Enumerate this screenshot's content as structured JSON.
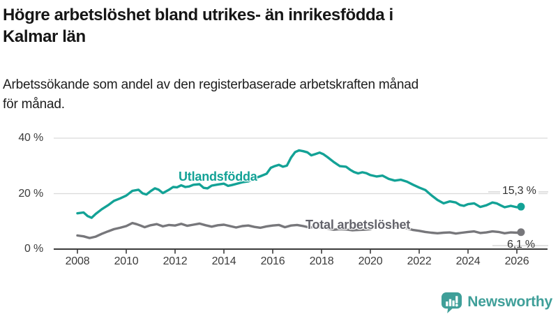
{
  "header": {
    "title_lines": [
      "Högre arbetslöshet bland utrikes- än inrikesfödda i",
      "Kalmar län"
    ],
    "subtitle_lines": [
      "Arbetssökande som andel av den registerbaserade arbetskraften månad",
      "för månad."
    ]
  },
  "footer": {
    "brand": "Newsworthy",
    "logo_icon": "newsworthy-speech-bubble-bar-chart-icon"
  },
  "colors": {
    "teal_line": "#13a296",
    "gray_line": "#77777b",
    "gray_label": "#63636b",
    "axis": "#3b3b3b",
    "gridline": "#d9d9d9",
    "leader_line": "#cfcfcf",
    "annotation_text": "#333333",
    "logo_teal": "#3f9f99"
  },
  "chart_data": {
    "type": "line",
    "title": "Högre arbetslöshet bland utrikes- än inrikesfödda i Kalmar län",
    "subtitle": "Arbetssökande som andel av den registerbaserade arbetskraften månad för månad.",
    "grid": "horizontal-only",
    "x_axis": {
      "range": [
        2007.9,
        2026.9
      ],
      "ticks": [
        2008,
        2010,
        2012,
        2014,
        2016,
        2018,
        2020,
        2022,
        2024,
        2026
      ]
    },
    "y_axis": {
      "range": [
        0,
        42
      ],
      "unit": "%",
      "ticks": [
        {
          "value": 40,
          "label": "40 %"
        },
        {
          "value": 20,
          "label": "20 %"
        },
        {
          "value": 0,
          "label": "0 %"
        }
      ]
    },
    "series": [
      {
        "name": "Utlandsfödda",
        "color": "#13a296",
        "end_label": "15,3 %",
        "end_value": 15.3,
        "points": [
          [
            2008.0,
            12.9
          ],
          [
            2008.25,
            13.2
          ],
          [
            2008.42,
            11.9
          ],
          [
            2008.58,
            11.3
          ],
          [
            2008.75,
            12.7
          ],
          [
            2009.0,
            14.4
          ],
          [
            2009.25,
            15.8
          ],
          [
            2009.5,
            17.4
          ],
          [
            2009.75,
            18.3
          ],
          [
            2010.0,
            19.3
          ],
          [
            2010.25,
            21.0
          ],
          [
            2010.5,
            21.4
          ],
          [
            2010.67,
            20.1
          ],
          [
            2010.83,
            19.7
          ],
          [
            2011.0,
            20.9
          ],
          [
            2011.17,
            21.9
          ],
          [
            2011.33,
            21.4
          ],
          [
            2011.5,
            20.2
          ],
          [
            2011.75,
            21.4
          ],
          [
            2011.92,
            22.4
          ],
          [
            2012.08,
            22.3
          ],
          [
            2012.25,
            23.0
          ],
          [
            2012.42,
            22.4
          ],
          [
            2012.58,
            22.6
          ],
          [
            2012.75,
            23.2
          ],
          [
            2013.0,
            23.4
          ],
          [
            2013.17,
            22.1
          ],
          [
            2013.33,
            21.9
          ],
          [
            2013.5,
            22.9
          ],
          [
            2013.75,
            23.3
          ],
          [
            2014.0,
            23.6
          ],
          [
            2014.17,
            22.8
          ],
          [
            2014.33,
            23.1
          ],
          [
            2014.5,
            23.5
          ],
          [
            2014.75,
            24.1
          ],
          [
            2015.0,
            24.4
          ],
          [
            2015.25,
            25.5
          ],
          [
            2015.5,
            26.3
          ],
          [
            2015.75,
            27.2
          ],
          [
            2015.92,
            29.3
          ],
          [
            2016.08,
            29.9
          ],
          [
            2016.25,
            30.4
          ],
          [
            2016.42,
            29.7
          ],
          [
            2016.58,
            30.1
          ],
          [
            2016.75,
            33.0
          ],
          [
            2016.92,
            35.0
          ],
          [
            2017.08,
            35.6
          ],
          [
            2017.25,
            35.3
          ],
          [
            2017.42,
            34.9
          ],
          [
            2017.58,
            33.8
          ],
          [
            2017.75,
            34.3
          ],
          [
            2017.92,
            34.8
          ],
          [
            2018.08,
            34.2
          ],
          [
            2018.25,
            33.1
          ],
          [
            2018.5,
            31.4
          ],
          [
            2018.75,
            29.9
          ],
          [
            2019.0,
            29.7
          ],
          [
            2019.17,
            28.6
          ],
          [
            2019.33,
            27.8
          ],
          [
            2019.5,
            27.3
          ],
          [
            2019.67,
            27.7
          ],
          [
            2019.83,
            27.4
          ],
          [
            2020.0,
            26.7
          ],
          [
            2020.25,
            26.2
          ],
          [
            2020.5,
            26.5
          ],
          [
            2020.75,
            25.3
          ],
          [
            2021.0,
            24.7
          ],
          [
            2021.25,
            25.0
          ],
          [
            2021.5,
            24.3
          ],
          [
            2021.75,
            23.2
          ],
          [
            2022.0,
            22.2
          ],
          [
            2022.25,
            21.3
          ],
          [
            2022.5,
            19.4
          ],
          [
            2022.75,
            17.7
          ],
          [
            2023.0,
            16.5
          ],
          [
            2023.25,
            17.2
          ],
          [
            2023.5,
            16.8
          ],
          [
            2023.67,
            15.9
          ],
          [
            2023.83,
            15.6
          ],
          [
            2024.0,
            16.2
          ],
          [
            2024.25,
            16.5
          ],
          [
            2024.5,
            15.2
          ],
          [
            2024.75,
            15.8
          ],
          [
            2025.0,
            16.8
          ],
          [
            2025.17,
            16.5
          ],
          [
            2025.33,
            15.8
          ],
          [
            2025.5,
            15.1
          ],
          [
            2025.75,
            15.6
          ],
          [
            2026.0,
            15.1
          ],
          [
            2026.17,
            15.3
          ]
        ]
      },
      {
        "name": "Total arbetslöshet",
        "color": "#77777b",
        "end_label": "6,1 %",
        "end_value": 6.1,
        "points": [
          [
            2008.0,
            4.9
          ],
          [
            2008.25,
            4.6
          ],
          [
            2008.5,
            4.0
          ],
          [
            2008.75,
            4.5
          ],
          [
            2009.0,
            5.5
          ],
          [
            2009.25,
            6.4
          ],
          [
            2009.5,
            7.2
          ],
          [
            2009.75,
            7.7
          ],
          [
            2010.0,
            8.3
          ],
          [
            2010.25,
            9.4
          ],
          [
            2010.42,
            9.0
          ],
          [
            2010.58,
            8.5
          ],
          [
            2010.75,
            7.9
          ],
          [
            2011.0,
            8.6
          ],
          [
            2011.25,
            9.0
          ],
          [
            2011.5,
            8.2
          ],
          [
            2011.75,
            8.7
          ],
          [
            2012.0,
            8.5
          ],
          [
            2012.25,
            9.1
          ],
          [
            2012.5,
            8.4
          ],
          [
            2012.75,
            8.8
          ],
          [
            2013.0,
            9.2
          ],
          [
            2013.25,
            8.6
          ],
          [
            2013.5,
            8.1
          ],
          [
            2013.75,
            8.6
          ],
          [
            2014.0,
            8.8
          ],
          [
            2014.25,
            8.3
          ],
          [
            2014.5,
            7.8
          ],
          [
            2014.75,
            8.3
          ],
          [
            2015.0,
            8.5
          ],
          [
            2015.25,
            8.0
          ],
          [
            2015.5,
            7.7
          ],
          [
            2015.75,
            8.2
          ],
          [
            2016.0,
            8.5
          ],
          [
            2016.25,
            8.7
          ],
          [
            2016.5,
            7.9
          ],
          [
            2016.75,
            8.5
          ],
          [
            2017.0,
            8.7
          ],
          [
            2017.25,
            8.3
          ],
          [
            2017.5,
            7.8
          ],
          [
            2017.75,
            8.0
          ],
          [
            2018.0,
            7.8
          ],
          [
            2018.25,
            7.4
          ],
          [
            2018.5,
            7.0
          ],
          [
            2018.75,
            7.2
          ],
          [
            2019.0,
            7.1
          ],
          [
            2019.25,
            6.8
          ],
          [
            2019.5,
            6.9
          ],
          [
            2019.75,
            7.0
          ],
          [
            2020.0,
            7.2
          ],
          [
            2020.33,
            8.9
          ],
          [
            2020.5,
            9.4
          ],
          [
            2020.75,
            8.8
          ],
          [
            2021.0,
            8.5
          ],
          [
            2021.25,
            8.1
          ],
          [
            2021.5,
            7.5
          ],
          [
            2021.75,
            6.9
          ],
          [
            2022.0,
            6.6
          ],
          [
            2022.25,
            6.2
          ],
          [
            2022.5,
            5.9
          ],
          [
            2022.75,
            5.7
          ],
          [
            2023.0,
            5.9
          ],
          [
            2023.25,
            6.0
          ],
          [
            2023.5,
            5.6
          ],
          [
            2023.75,
            5.9
          ],
          [
            2024.0,
            6.2
          ],
          [
            2024.25,
            6.4
          ],
          [
            2024.5,
            5.8
          ],
          [
            2024.75,
            6.0
          ],
          [
            2025.0,
            6.4
          ],
          [
            2025.25,
            6.2
          ],
          [
            2025.5,
            5.7
          ],
          [
            2025.75,
            6.0
          ],
          [
            2026.0,
            5.9
          ],
          [
            2026.17,
            6.1
          ]
        ]
      }
    ],
    "legend_position": "inline-labels"
  }
}
